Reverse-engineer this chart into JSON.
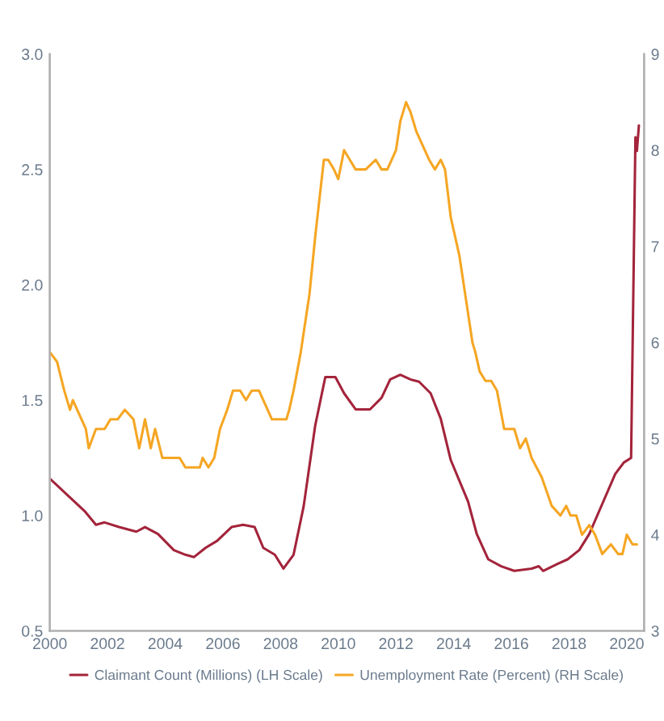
{
  "chart_data": {
    "type": "line",
    "xlim": [
      2000,
      2020.6
    ],
    "xticks": [
      2000,
      2002,
      2004,
      2006,
      2008,
      2010,
      2012,
      2014,
      2016,
      2018,
      2020
    ],
    "ylim": [
      0.5,
      3.0
    ],
    "yticks": [
      0.5,
      {
        "value": 1.0,
        "label": "1.0"
      },
      1.5,
      {
        "value": 2.0,
        "label": "2.0"
      },
      2.5,
      {
        "value": 3.0,
        "label": "3.0"
      }
    ],
    "y2lim": [
      3,
      9
    ],
    "y2ticks": [
      3,
      4,
      5,
      6,
      7,
      8,
      9
    ],
    "grid": false,
    "legend": "bottom",
    "marker": "none",
    "line_style": "solid",
    "series": [
      {
        "name": "Claimant Count (Millions) (LH Scale)",
        "color": "#a3243b",
        "x": [
          2000,
          2000.6,
          2001.2,
          2001.6,
          2001.9,
          2002.4,
          2003.0,
          2003.3,
          2003.75,
          2004.3,
          2004.7,
          2005.0,
          2005.4,
          2005.8,
          2006.3,
          2006.7,
          2007.1,
          2007.4,
          2007.8,
          2008.1,
          2008.45,
          2008.8,
          2009.2,
          2009.55,
          2009.9,
          2010.2,
          2010.6,
          2011.1,
          2011.5,
          2011.8,
          2012.15,
          2012.5,
          2012.8,
          2013.2,
          2013.55,
          2013.9,
          2014.5,
          2014.8,
          2015.2,
          2015.65,
          2016.1,
          2016.7,
          2016.95,
          2017.1,
          2017.6,
          2017.95,
          2018.35,
          2018.7,
          2019.15,
          2019.6,
          2019.9,
          2020.15,
          2020.3,
          2020.35,
          2020.42
        ],
        "values": [
          1.16,
          1.09,
          1.02,
          0.96,
          0.97,
          0.95,
          0.93,
          0.95,
          0.92,
          0.85,
          0.83,
          0.82,
          0.86,
          0.89,
          0.95,
          0.96,
          0.95,
          0.86,
          0.83,
          0.77,
          0.83,
          1.04,
          1.39,
          1.6,
          1.6,
          1.53,
          1.46,
          1.46,
          1.51,
          1.59,
          1.61,
          1.59,
          1.58,
          1.53,
          1.42,
          1.24,
          1.06,
          0.92,
          0.81,
          0.78,
          0.76,
          0.77,
          0.78,
          0.76,
          0.79,
          0.81,
          0.85,
          0.92,
          1.05,
          1.18,
          1.23,
          1.25,
          2.64,
          2.58,
          2.69
        ]
      },
      {
        "name": "Unemployment Rate (Percent) (RH Scale)",
        "color": "#f5a623",
        "axis": "y2",
        "x": [
          2000,
          2000.25,
          2000.5,
          2000.7,
          2000.8,
          2001.1,
          2001.25,
          2001.35,
          2001.6,
          2001.9,
          2002.1,
          2002.35,
          2002.6,
          2002.9,
          2003.1,
          2003.3,
          2003.5,
          2003.65,
          2003.9,
          2004.5,
          2004.7,
          2005.2,
          2005.3,
          2005.5,
          2005.7,
          2005.9,
          2006.15,
          2006.35,
          2006.6,
          2006.8,
          2007.0,
          2007.25,
          2007.55,
          2007.7,
          2008.2,
          2008.3,
          2008.45,
          2008.7,
          2009.0,
          2009.2,
          2009.5,
          2009.65,
          2009.85,
          2010.0,
          2010.2,
          2010.4,
          2010.6,
          2010.95,
          2011.3,
          2011.5,
          2011.7,
          2012.0,
          2012.15,
          2012.35,
          2012.5,
          2012.7,
          2013.0,
          2013.15,
          2013.35,
          2013.55,
          2013.7,
          2013.9,
          2014.2,
          2014.45,
          2014.65,
          2014.75,
          2014.9,
          2015.1,
          2015.3,
          2015.5,
          2015.75,
          2016.1,
          2016.3,
          2016.5,
          2016.7,
          2017.05,
          2017.4,
          2017.7,
          2017.9,
          2018.05,
          2018.25,
          2018.45,
          2018.7,
          2018.9,
          2019.15,
          2019.45,
          2019.7,
          2019.85,
          2020.0,
          2020.2,
          2020.35
        ],
        "values": [
          5.9,
          5.8,
          5.5,
          5.3,
          5.4,
          5.2,
          5.1,
          4.9,
          5.1,
          5.1,
          5.2,
          5.2,
          5.3,
          5.2,
          4.9,
          5.2,
          4.9,
          5.1,
          4.8,
          4.8,
          4.7,
          4.7,
          4.8,
          4.7,
          4.8,
          5.1,
          5.3,
          5.5,
          5.5,
          5.4,
          5.5,
          5.5,
          5.3,
          5.2,
          5.2,
          5.3,
          5.5,
          5.9,
          6.5,
          7.1,
          7.9,
          7.9,
          7.8,
          7.7,
          8.0,
          7.9,
          7.8,
          7.8,
          7.9,
          7.8,
          7.8,
          8.0,
          8.3,
          8.5,
          8.4,
          8.2,
          8.0,
          7.9,
          7.8,
          7.9,
          7.8,
          7.3,
          6.9,
          6.4,
          6.0,
          5.9,
          5.7,
          5.6,
          5.6,
          5.5,
          5.1,
          5.1,
          4.9,
          5.0,
          4.8,
          4.6,
          4.3,
          4.2,
          4.3,
          4.2,
          4.2,
          4.0,
          4.1,
          4.0,
          3.8,
          3.9,
          3.8,
          3.8,
          4.0,
          3.9,
          3.9
        ]
      }
    ]
  }
}
